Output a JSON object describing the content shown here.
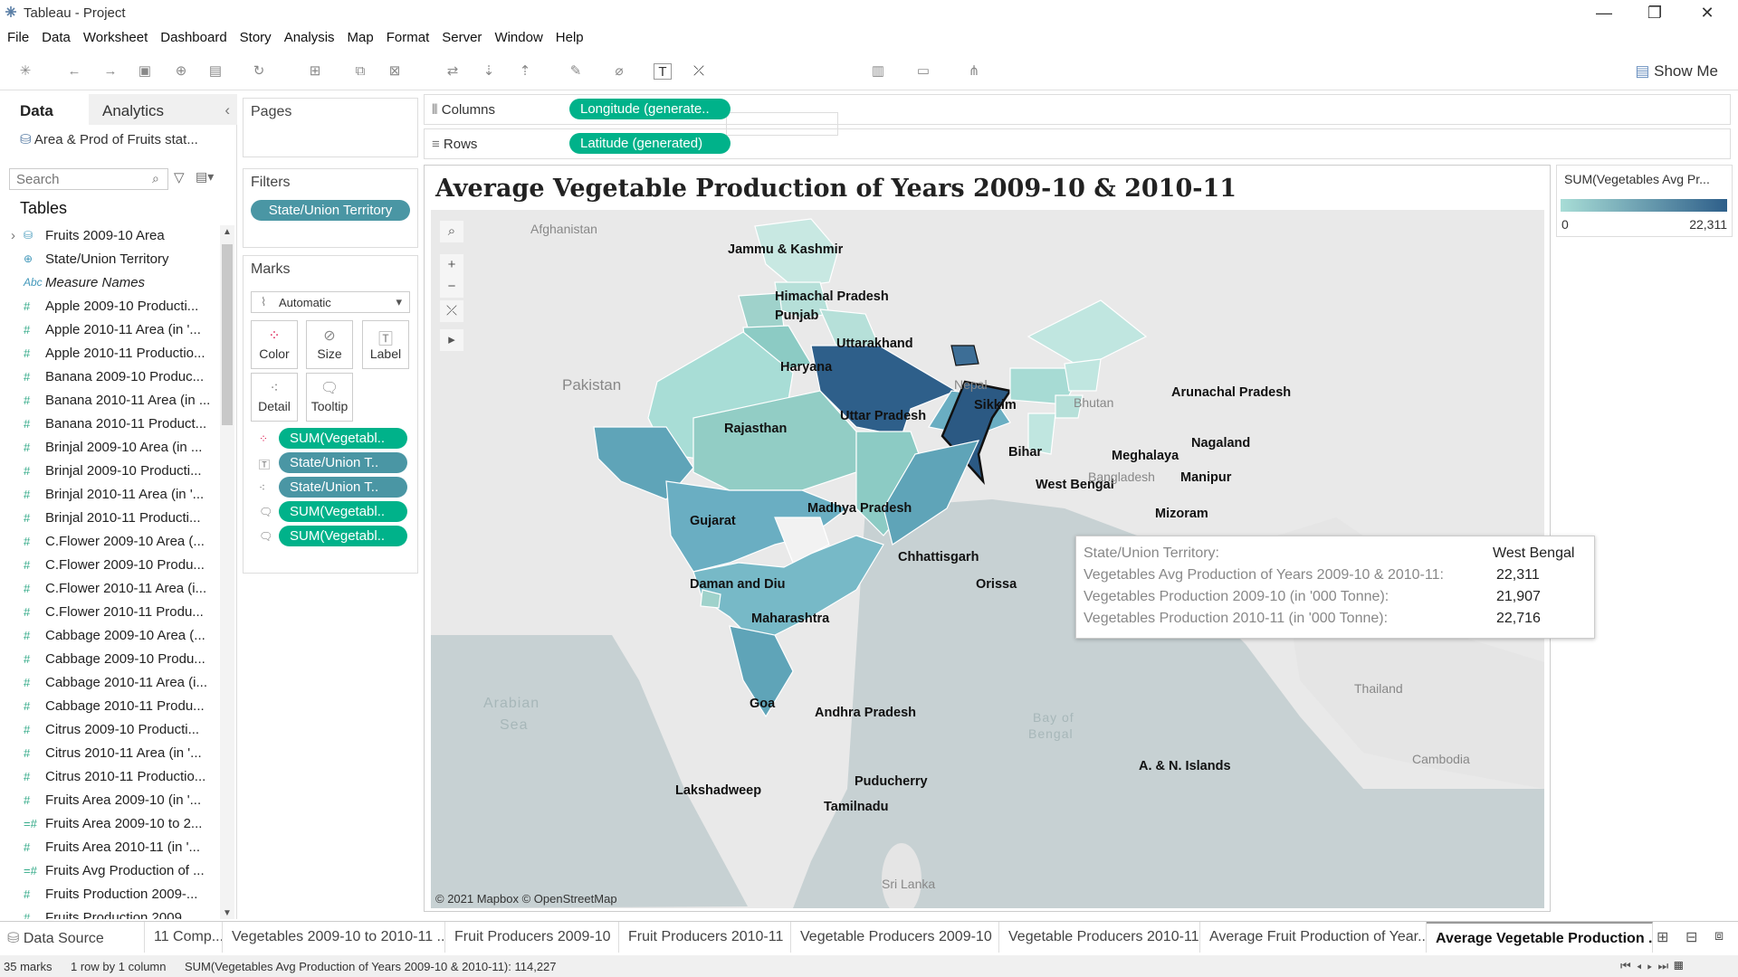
{
  "window": {
    "title": "Tableau - Project",
    "min": "—",
    "max": "❐",
    "close": "✕"
  },
  "menu": [
    "File",
    "Data",
    "Worksheet",
    "Dashboard",
    "Story",
    "Analysis",
    "Map",
    "Format",
    "Server",
    "Window",
    "Help"
  ],
  "toolbar": {
    "show_me": "Show Me"
  },
  "left": {
    "data_tab": "Data",
    "analytics_tab": "Analytics",
    "data_source": "Area & Prod of Fruits stat...",
    "search_placeholder": "Search",
    "tables_heading": "Tables",
    "fields": [
      {
        "icon": "table",
        "label": "Fruits 2009-10 Area"
      },
      {
        "icon": "globe",
        "label": "State/Union Territory"
      },
      {
        "icon": "abc",
        "label": "Measure Names"
      },
      {
        "icon": "#",
        "label": "Apple 2009-10 Producti..."
      },
      {
        "icon": "#",
        "label": "Apple 2010-11 Area (in '..."
      },
      {
        "icon": "#",
        "label": "Apple 2010-11 Productio..."
      },
      {
        "icon": "#",
        "label": "Banana 2009-10 Produc..."
      },
      {
        "icon": "#",
        "label": "Banana 2010-11 Area (in ..."
      },
      {
        "icon": "#",
        "label": "Banana 2010-11 Product..."
      },
      {
        "icon": "#",
        "label": "Brinjal 2009-10 Area (in ..."
      },
      {
        "icon": "#",
        "label": "Brinjal 2009-10 Producti..."
      },
      {
        "icon": "#",
        "label": "Brinjal 2010-11 Area (in '..."
      },
      {
        "icon": "#",
        "label": "Brinjal 2010-11 Producti..."
      },
      {
        "icon": "#",
        "label": "C.Flower 2009-10 Area (..."
      },
      {
        "icon": "#",
        "label": "C.Flower 2009-10 Produ..."
      },
      {
        "icon": "#",
        "label": "C.Flower 2010-11 Area (i..."
      },
      {
        "icon": "#",
        "label": "C.Flower 2010-11 Produ..."
      },
      {
        "icon": "#",
        "label": "Cabbage 2009-10 Area (..."
      },
      {
        "icon": "#",
        "label": "Cabbage 2009-10 Produ..."
      },
      {
        "icon": "#",
        "label": "Cabbage 2010-11 Area (i..."
      },
      {
        "icon": "#",
        "label": "Cabbage 2010-11 Produ..."
      },
      {
        "icon": "#",
        "label": "Citrus 2009-10 Producti..."
      },
      {
        "icon": "#",
        "label": "Citrus 2010-11 Area (in '..."
      },
      {
        "icon": "#",
        "label": "Citrus 2010-11 Productio..."
      },
      {
        "icon": "#",
        "label": "Fruits Area 2009-10 (in '..."
      },
      {
        "icon": "=#",
        "label": "Fruits Area 2009-10 to 2..."
      },
      {
        "icon": "#",
        "label": "Fruits Area 2010-11 (in '..."
      },
      {
        "icon": "=#",
        "label": "Fruits Avg Production of ..."
      },
      {
        "icon": "#",
        "label": "Fruits Production 2009-..."
      },
      {
        "icon": "#",
        "label": "Fruits Production 2009..."
      }
    ]
  },
  "shelves": {
    "pages": "Pages",
    "filters": "Filters",
    "filter_pill": "State/Union Territory",
    "marks": "Marks",
    "mark_type": "Automatic",
    "mark_buttons": [
      "Color",
      "Size",
      "Label",
      "Detail",
      "Tooltip"
    ],
    "mark_pills": [
      "SUM(Vegetabl..",
      "State/Union T..",
      "State/Union T..",
      "SUM(Vegetabl..",
      "SUM(Vegetabl.."
    ],
    "columns_label": "Columns",
    "columns_pill": "Longitude (generate..",
    "rows_label": "Rows",
    "rows_pill": "Latitude (generated)"
  },
  "viz": {
    "title": "Average Vegetable Production of Years 2009-10 & 2010-11",
    "attribution": "© 2021 Mapbox © OpenStreetMap",
    "labels": [
      "Jammu & Kashmir",
      "Himachal Pradesh",
      "Punjab",
      "Uttarakhand",
      "Haryana",
      "Rajasthan",
      "Uttar Pradesh",
      "Sikkim",
      "Arunachal Pradesh",
      "Bihar",
      "Meghalaya",
      "Nagaland",
      "West Bengal",
      "Manipur",
      "Gujarat",
      "Madhya Pradesh",
      "Mizoram",
      "Chhattisgarh",
      "Orissa",
      "Daman and Diu",
      "Maharashtra",
      "Goa",
      "Andhra Pradesh",
      "Lakshadweep",
      "Puducherry",
      "Tamilnadu",
      "A. & N. Islands"
    ],
    "bg_labels": [
      "Afghanistan",
      "Pakistan",
      "Nepal",
      "Bhutan",
      "Bangladesh",
      "Thailand",
      "Cambodia",
      "Sri Lanka"
    ],
    "sea_labels": [
      "Arabian",
      "Sea",
      "Bay of",
      "Bengal"
    ]
  },
  "legend": {
    "title": "SUM(Vegetables Avg Pr...",
    "min": "0",
    "max": "22,311",
    "color_low": "#a8ddd6",
    "color_high": "#2e5f8a"
  },
  "tooltip": {
    "rows": [
      {
        "label": "State/Union Territory:",
        "value": "West Bengal"
      },
      {
        "label": "Vegetables Avg Production of Years 2009-10 & 2010-11:",
        "value": "22,311"
      },
      {
        "label": "Vegetables Production 2009-10 (in '000 Tonne):",
        "value": "21,907"
      },
      {
        "label": "Vegetables Production  2010-11 (in '000 Tonne):",
        "value": "22,716"
      }
    ]
  },
  "sheet_tabs": [
    "Data Source",
    "11 Comp...",
    "Vegetables 2009-10 to 2010-11 ...",
    "Fruit Producers 2009-10",
    "Fruit Producers 2010-11",
    "Vegetable Producers 2009-10",
    "Vegetable Producers 2010-11",
    "Average Fruit Production of Year...",
    "Average Vegetable Production ..."
  ],
  "status": {
    "marks": "35 marks",
    "dims": "1 row by 1 column",
    "sum": "SUM(Vegetables Avg Production of Years 2009-10 & 2010-11): 114,227"
  }
}
